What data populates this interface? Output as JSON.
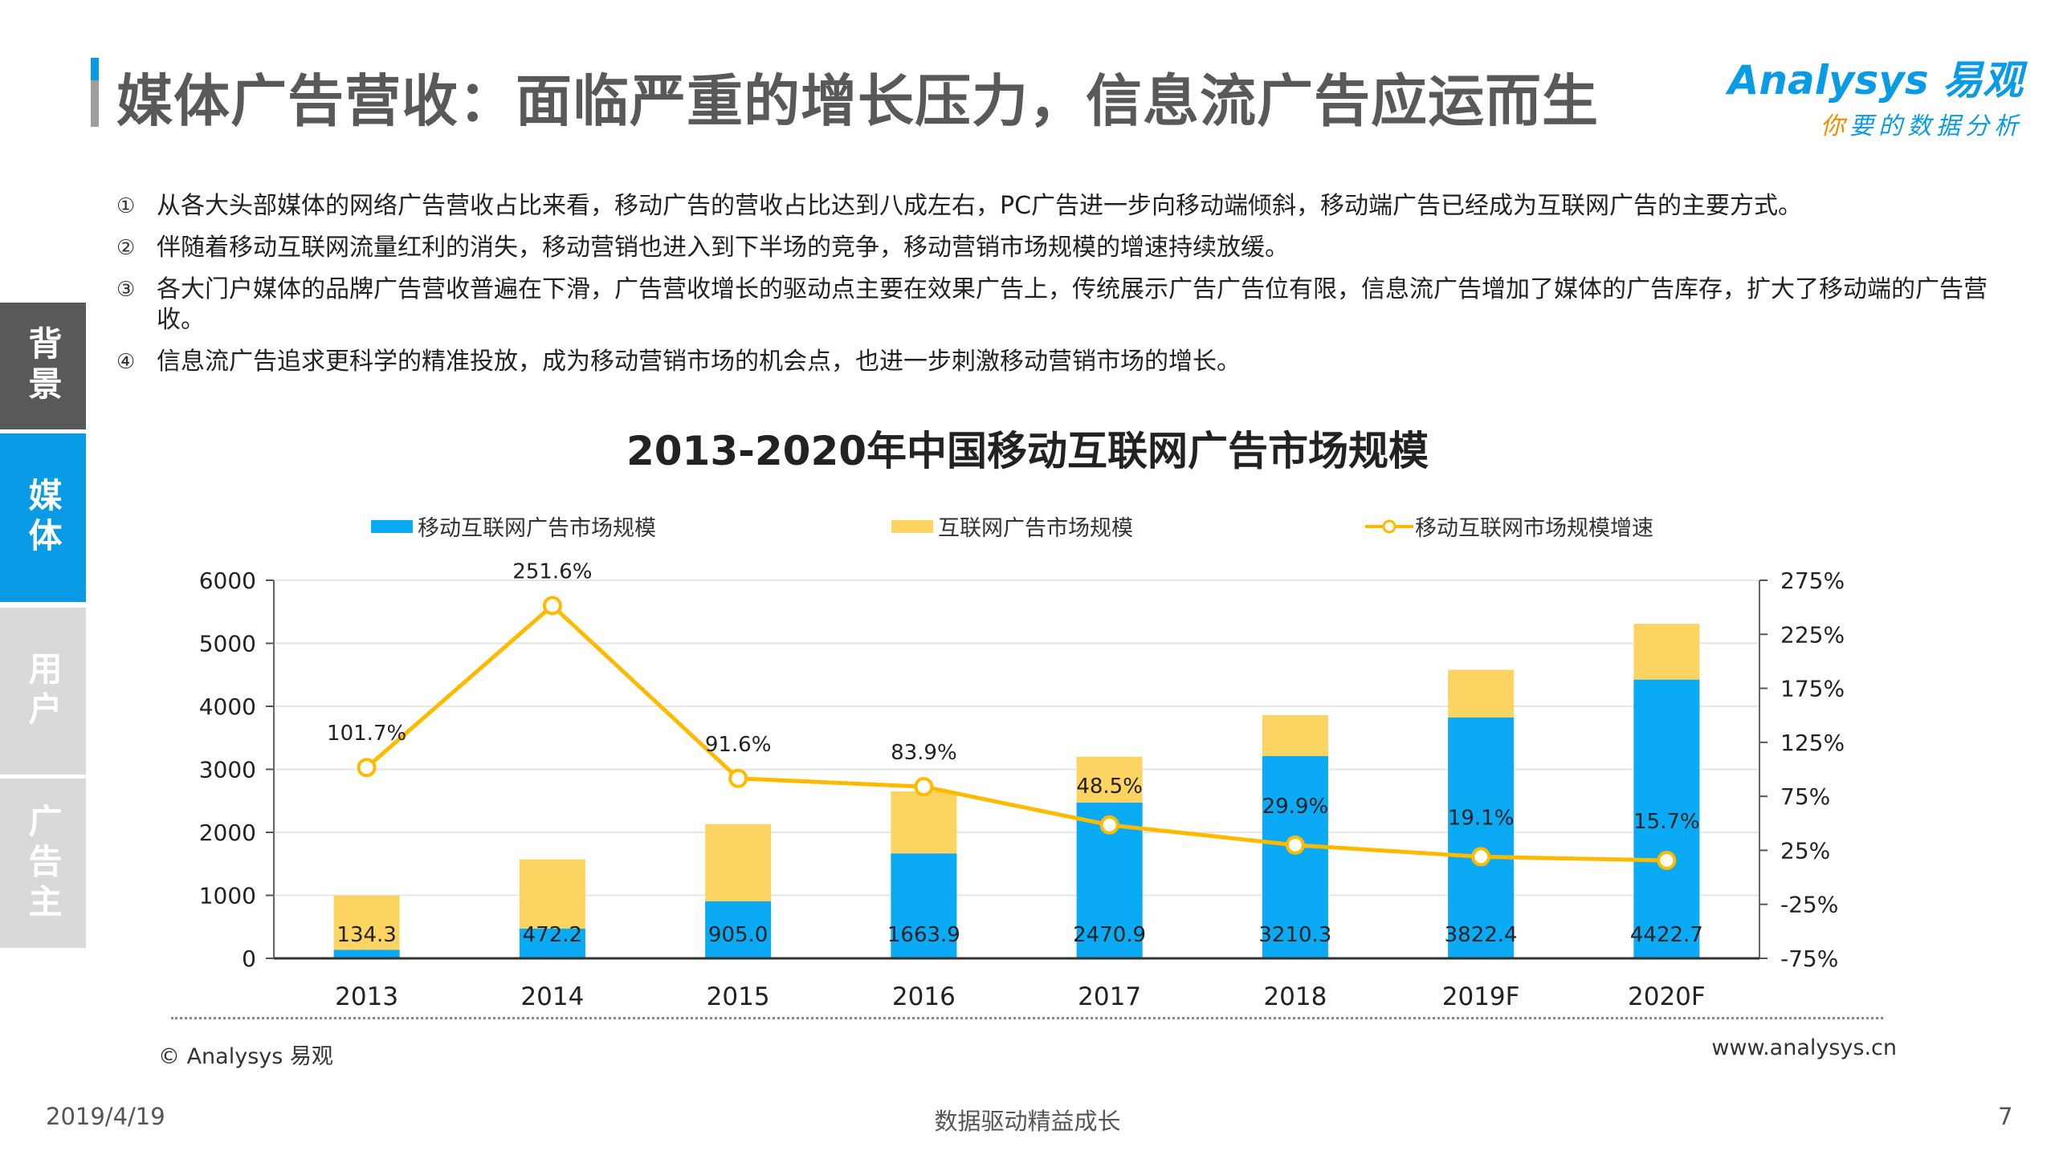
{
  "header": {
    "title": "媒体广告营收：面临严重的增长压力，信息流广告应运而生",
    "logo_main": "Analysys 易观",
    "logo_sub_first": "你",
    "logo_sub_rest": "要的数据分析"
  },
  "sidebar": {
    "items": [
      {
        "label": "背景"
      },
      {
        "label": "媒体",
        "active": true
      },
      {
        "label": "用户"
      },
      {
        "label": "广告主"
      }
    ]
  },
  "bullets": [
    {
      "num": "①",
      "text": "从各大头部媒体的网络广告营收占比来看，移动广告的营收占比达到八成左右，PC广告进一步向移动端倾斜，移动端广告已经成为互联网广告的主要方式。"
    },
    {
      "num": "②",
      "text": "伴随着移动互联网流量红利的消失，移动营销也进入到下半场的竞争，移动营销市场规模的增速持续放缓。"
    },
    {
      "num": "③",
      "text": "各大门户媒体的品牌广告营收普遍在下滑，广告营收增长的驱动点主要在效果广告上，传统展示广告广告位有限，信息流广告增加了媒体的广告库存，扩大了移动端的广告营收。"
    },
    {
      "num": "④",
      "text": "信息流广告追求更科学的精准投放，成为移动营销市场的机会点，也进一步刺激移动营销市场的增长。"
    }
  ],
  "chart_data": {
    "type": "bar",
    "title": "2013-2020年中国移动互联网广告市场规模",
    "categories": [
      "2013",
      "2014",
      "2015",
      "2016",
      "2017",
      "2018",
      "2019F",
      "2020F"
    ],
    "series": [
      {
        "name": "移动互联网广告市场规模",
        "type": "bar",
        "color": "#0aaaf5",
        "values": [
          134.3,
          472.2,
          905.0,
          1663.9,
          2470.9,
          3210.3,
          3822.4,
          4422.7
        ],
        "labels": [
          "134.3",
          "472.2",
          "905.0",
          "1663.9",
          "2470.9",
          "3210.3",
          "3822.4",
          "4422.7"
        ]
      },
      {
        "name": "互联网广告市场规模",
        "type": "bar",
        "color": "#fdd462",
        "values": [
          1000,
          1570,
          2130,
          2650,
          3200,
          3860,
          4580,
          5310
        ]
      },
      {
        "name": "移动互联网市场规模增速",
        "type": "line",
        "axis": "right",
        "color": "#ffba00",
        "values": [
          101.7,
          251.6,
          91.6,
          83.9,
          48.5,
          29.9,
          19.1,
          15.7
        ],
        "labels": [
          "101.7%",
          "251.6%",
          "91.6%",
          "83.9%",
          "48.5%",
          "29.9%",
          "19.1%",
          "15.7%"
        ]
      }
    ],
    "ylim": [
      0,
      6000
    ],
    "yticks": [
      "0",
      "1000",
      "2000",
      "3000",
      "4000",
      "5000",
      "6000"
    ],
    "y2lim": [
      -75,
      275
    ],
    "y2ticks": [
      "-75%",
      "-25%",
      "25%",
      "75%",
      "125%",
      "175%",
      "225%",
      "275%"
    ],
    "grid": true,
    "legend": "top"
  },
  "footer": {
    "copyright": "© Analysys 易观",
    "url": "www.analysys.cn",
    "date": "2019/4/19",
    "slogan": "数据驱动精益成长",
    "page": "7"
  }
}
